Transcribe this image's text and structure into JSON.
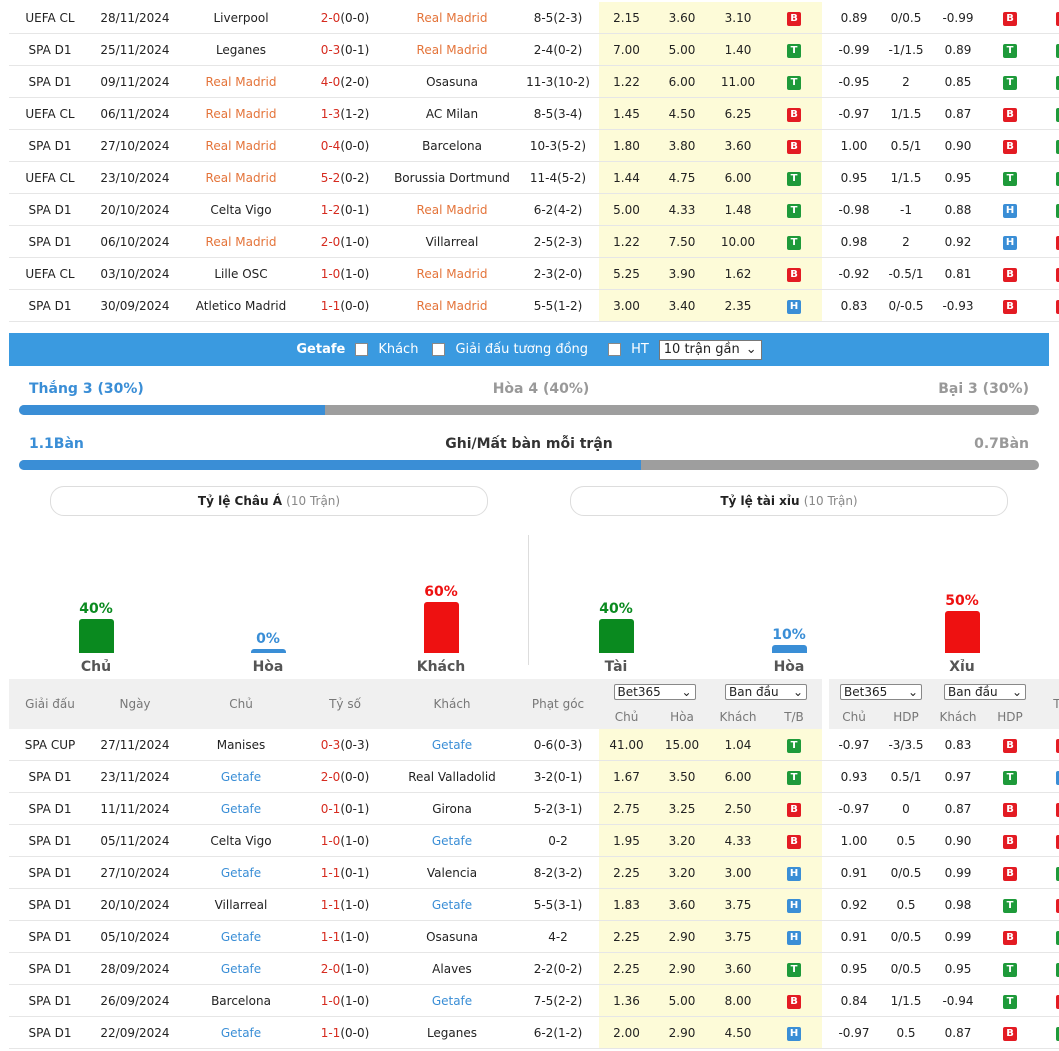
{
  "table1": {
    "rows": [
      {
        "league": "UEFA CL",
        "date": "28/11/2024",
        "home": "Liverpool",
        "home_hl": false,
        "score": "2-0",
        "ht": "(0-0)",
        "away": "Real Madrid",
        "away_hl": true,
        "corner": "8-5(2-3)",
        "o1": "2.15",
        "o2": "3.60",
        "o3": "3.10",
        "tb": "B",
        "a1": "0.89",
        "hdp": "0/0.5",
        "a2": "-0.99",
        "hdp_r": "B",
        "tx": "X"
      },
      {
        "league": "SPA D1",
        "date": "25/11/2024",
        "home": "Leganes",
        "home_hl": false,
        "score": "0-3",
        "ht": "(0-1)",
        "away": "Real Madrid",
        "away_hl": true,
        "corner": "2-4(0-2)",
        "o1": "7.00",
        "o2": "5.00",
        "o3": "1.40",
        "tb": "T",
        "a1": "-0.99",
        "hdp": "-1/1.5",
        "a2": "0.89",
        "hdp_r": "T",
        "tx": "T"
      },
      {
        "league": "SPA D1",
        "date": "09/11/2024",
        "home": "Real Madrid",
        "home_hl": true,
        "score": "4-0",
        "ht": "(2-0)",
        "away": "Osasuna",
        "away_hl": false,
        "corner": "11-3(10-2)",
        "o1": "1.22",
        "o2": "6.00",
        "o3": "11.00",
        "tb": "T",
        "a1": "-0.95",
        "hdp": "2",
        "a2": "0.85",
        "hdp_r": "T",
        "tx": "T"
      },
      {
        "league": "UEFA CL",
        "date": "06/11/2024",
        "home": "Real Madrid",
        "home_hl": true,
        "score": "1-3",
        "ht": "(1-2)",
        "away": "AC Milan",
        "away_hl": false,
        "corner": "8-5(3-4)",
        "o1": "1.45",
        "o2": "4.50",
        "o3": "6.25",
        "tb": "B",
        "a1": "-0.97",
        "hdp": "1/1.5",
        "a2": "0.87",
        "hdp_r": "B",
        "tx": "T"
      },
      {
        "league": "SPA D1",
        "date": "27/10/2024",
        "home": "Real Madrid",
        "home_hl": true,
        "score": "0-4",
        "ht": "(0-0)",
        "away": "Barcelona",
        "away_hl": false,
        "corner": "10-3(5-2)",
        "o1": "1.80",
        "o2": "3.80",
        "o3": "3.60",
        "tb": "B",
        "a1": "1.00",
        "hdp": "0.5/1",
        "a2": "0.90",
        "hdp_r": "B",
        "tx": "T"
      },
      {
        "league": "UEFA CL",
        "date": "23/10/2024",
        "home": "Real Madrid",
        "home_hl": true,
        "score": "5-2",
        "ht": "(0-2)",
        "away": "Borussia Dortmund",
        "away_hl": false,
        "corner": "11-4(5-2)",
        "o1": "1.44",
        "o2": "4.75",
        "o3": "6.00",
        "tb": "T",
        "a1": "0.95",
        "hdp": "1/1.5",
        "a2": "0.95",
        "hdp_r": "T",
        "tx": "T"
      },
      {
        "league": "SPA D1",
        "date": "20/10/2024",
        "home": "Celta Vigo",
        "home_hl": false,
        "score": "1-2",
        "ht": "(0-1)",
        "away": "Real Madrid",
        "away_hl": true,
        "corner": "6-2(4-2)",
        "o1": "5.00",
        "o2": "4.33",
        "o3": "1.48",
        "tb": "T",
        "a1": "-0.98",
        "hdp": "-1",
        "a2": "0.88",
        "hdp_r": "H",
        "tx": "T"
      },
      {
        "league": "SPA D1",
        "date": "06/10/2024",
        "home": "Real Madrid",
        "home_hl": true,
        "score": "2-0",
        "ht": "(1-0)",
        "away": "Villarreal",
        "away_hl": false,
        "corner": "2-5(2-3)",
        "o1": "1.22",
        "o2": "7.50",
        "o3": "10.00",
        "tb": "T",
        "a1": "0.98",
        "hdp": "2",
        "a2": "0.92",
        "hdp_r": "H",
        "tx": "X"
      },
      {
        "league": "UEFA CL",
        "date": "03/10/2024",
        "home": "Lille OSC",
        "home_hl": false,
        "score": "1-0",
        "ht": "(1-0)",
        "away": "Real Madrid",
        "away_hl": true,
        "corner": "2-3(2-0)",
        "o1": "5.25",
        "o2": "3.90",
        "o3": "1.62",
        "tb": "B",
        "a1": "-0.92",
        "hdp": "-0.5/1",
        "a2": "0.81",
        "hdp_r": "B",
        "tx": "X"
      },
      {
        "league": "SPA D1",
        "date": "30/09/2024",
        "home": "Atletico Madrid",
        "home_hl": false,
        "score": "1-1",
        "ht": "(0-0)",
        "away": "Real Madrid",
        "away_hl": true,
        "corner": "5-5(1-2)",
        "o1": "3.00",
        "o2": "3.40",
        "o3": "2.35",
        "tb": "H",
        "a1": "0.83",
        "hdp": "0/-0.5",
        "a2": "-0.93",
        "hdp_r": "B",
        "tx": "X"
      }
    ]
  },
  "filter": {
    "team": "Getafe",
    "opt_away": "Khách",
    "opt_same_league": "Giải đấu tương đồng",
    "opt_ht": "HT",
    "select": "10 trận gần",
    "select_arrow": "⌄"
  },
  "summary": {
    "win": "Thắng 3 (30%)",
    "draw": "Hòa 4 (40%)",
    "loss": "Bại 3 (30%)",
    "win_fraction": 0.3,
    "goals_for": "1.1Bàn",
    "goals_title": "Ghi/Mất bàn mỗi trận",
    "goals_against": "0.7Bàn",
    "goals_fraction": 0.61
  },
  "asian": {
    "title": "Tỷ lệ Châu Á",
    "sub": "(10 Trận)",
    "cols": [
      {
        "pct": "40%",
        "name": "Chủ",
        "value": 40,
        "color": "#0a8a1f"
      },
      {
        "pct": "0%",
        "name": "Hòa",
        "value": 0,
        "color": "#3a8ed6"
      },
      {
        "pct": "60%",
        "name": "Khách",
        "value": 60,
        "color": "#ee1111"
      }
    ]
  },
  "overunder": {
    "title": "Tỷ lệ tài xỉu",
    "sub": "(10 Trận)",
    "cols": [
      {
        "pct": "40%",
        "name": "Tài",
        "value": 40,
        "color": "#0a8a1f"
      },
      {
        "pct": "10%",
        "name": "Hòa",
        "value": 10,
        "color": "#3a8ed6"
      },
      {
        "pct": "50%",
        "name": "Xỉu",
        "value": 50,
        "color": "#ee1111"
      }
    ]
  },
  "table2": {
    "headers": {
      "league": "Giải đấu",
      "date": "Ngày",
      "home": "Chủ",
      "score": "Tỷ số",
      "away": "Khách",
      "corner": "Phạt góc",
      "book1": "Bet365",
      "book1b": "Ban đầu",
      "book2": "Bet365",
      "book2b": "Ban đầu",
      "arrow": "⌄",
      "chu": "Chủ",
      "hoa": "Hòa",
      "khach": "Khách",
      "tb": "T/B",
      "chu2": "Chủ",
      "hdp": "HDP",
      "khach2": "Khách",
      "hdp2": "HDP",
      "tx": "T/X"
    },
    "rows": [
      {
        "league": "SPA CUP",
        "date": "27/11/2024",
        "home": "Manises",
        "home_hl": false,
        "score": "0-3",
        "ht": "(0-3)",
        "away": "Getafe",
        "away_hl": true,
        "corner": "0-6(0-3)",
        "o1": "41.00",
        "o2": "15.00",
        "o3": "1.04",
        "tb": "T",
        "a1": "-0.97",
        "hdp": "-3/3.5",
        "a2": "0.83",
        "hdp_r": "B",
        "tx": "X"
      },
      {
        "league": "SPA D1",
        "date": "23/11/2024",
        "home": "Getafe",
        "home_hl": true,
        "score": "2-0",
        "ht": "(0-0)",
        "away": "Real Valladolid",
        "away_hl": false,
        "corner": "3-2(0-1)",
        "o1": "1.67",
        "o2": "3.50",
        "o3": "6.00",
        "tb": "T",
        "a1": "0.93",
        "hdp": "0.5/1",
        "a2": "0.97",
        "hdp_r": "T",
        "tx": "H"
      },
      {
        "league": "SPA D1",
        "date": "11/11/2024",
        "home": "Getafe",
        "home_hl": true,
        "score": "0-1",
        "ht": "(0-1)",
        "away": "Girona",
        "away_hl": false,
        "corner": "5-2(3-1)",
        "o1": "2.75",
        "o2": "3.25",
        "o3": "2.50",
        "tb": "B",
        "a1": "-0.97",
        "hdp": "0",
        "a2": "0.87",
        "hdp_r": "B",
        "tx": "X"
      },
      {
        "league": "SPA D1",
        "date": "05/11/2024",
        "home": "Celta Vigo",
        "home_hl": false,
        "score": "1-0",
        "ht": "(1-0)",
        "away": "Getafe",
        "away_hl": true,
        "corner": "0-2",
        "o1": "1.95",
        "o2": "3.20",
        "o3": "4.33",
        "tb": "B",
        "a1": "1.00",
        "hdp": "0.5",
        "a2": "0.90",
        "hdp_r": "B",
        "tx": "X"
      },
      {
        "league": "SPA D1",
        "date": "27/10/2024",
        "home": "Getafe",
        "home_hl": true,
        "score": "1-1",
        "ht": "(0-1)",
        "away": "Valencia",
        "away_hl": false,
        "corner": "8-2(3-2)",
        "o1": "2.25",
        "o2": "3.20",
        "o3": "3.00",
        "tb": "H",
        "a1": "0.91",
        "hdp": "0/0.5",
        "a2": "0.99",
        "hdp_r": "B",
        "tx": "T"
      },
      {
        "league": "SPA D1",
        "date": "20/10/2024",
        "home": "Villarreal",
        "home_hl": false,
        "score": "1-1",
        "ht": "(1-0)",
        "away": "Getafe",
        "away_hl": true,
        "corner": "5-5(3-1)",
        "o1": "1.83",
        "o2": "3.60",
        "o3": "3.75",
        "tb": "H",
        "a1": "0.92",
        "hdp": "0.5",
        "a2": "0.98",
        "hdp_r": "T",
        "tx": "X"
      },
      {
        "league": "SPA D1",
        "date": "05/10/2024",
        "home": "Getafe",
        "home_hl": true,
        "score": "1-1",
        "ht": "(1-0)",
        "away": "Osasuna",
        "away_hl": false,
        "corner": "4-2",
        "o1": "2.25",
        "o2": "2.90",
        "o3": "3.75",
        "tb": "H",
        "a1": "0.91",
        "hdp": "0/0.5",
        "a2": "0.99",
        "hdp_r": "B",
        "tx": "T"
      },
      {
        "league": "SPA D1",
        "date": "28/09/2024",
        "home": "Getafe",
        "home_hl": true,
        "score": "2-0",
        "ht": "(1-0)",
        "away": "Alaves",
        "away_hl": false,
        "corner": "2-2(0-2)",
        "o1": "2.25",
        "o2": "2.90",
        "o3": "3.60",
        "tb": "T",
        "a1": "0.95",
        "hdp": "0/0.5",
        "a2": "0.95",
        "hdp_r": "T",
        "tx": "T"
      },
      {
        "league": "SPA D1",
        "date": "26/09/2024",
        "home": "Barcelona",
        "home_hl": false,
        "score": "1-0",
        "ht": "(1-0)",
        "away": "Getafe",
        "away_hl": true,
        "corner": "7-5(2-2)",
        "o1": "1.36",
        "o2": "5.00",
        "o3": "8.00",
        "tb": "B",
        "a1": "0.84",
        "hdp": "1/1.5",
        "a2": "-0.94",
        "hdp_r": "T",
        "tx": "X"
      },
      {
        "league": "SPA D1",
        "date": "22/09/2024",
        "home": "Getafe",
        "home_hl": true,
        "score": "1-1",
        "ht": "(0-0)",
        "away": "Leganes",
        "away_hl": false,
        "corner": "6-2(1-2)",
        "o1": "2.00",
        "o2": "2.90",
        "o3": "4.50",
        "tb": "H",
        "a1": "-0.97",
        "hdp": "0.5",
        "a2": "0.87",
        "hdp_r": "B",
        "tx": "T"
      }
    ]
  }
}
